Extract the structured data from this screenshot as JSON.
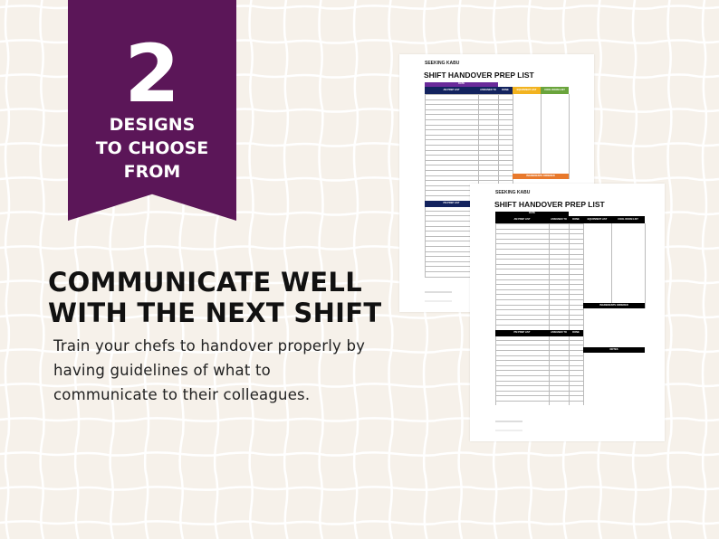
{
  "banner": {
    "number": "2",
    "lines": [
      "DESIGNS",
      "TO CHOOSE",
      "FROM"
    ]
  },
  "headline": [
    "COMMUNICATE WELL",
    "WITH THE NEXT SHIFT"
  ],
  "body": [
    "Train your chefs to handover properly by",
    "having guidelines of what to",
    "communicate to their colleagues."
  ],
  "docs": [
    {
      "logo": "SEEKING KABU",
      "title": "SHIFT HANDOVER PREP LIST",
      "date": "DATE",
      "am": "AM PREP LIST",
      "assigned": "ASSIGNED TO",
      "done": "DONE",
      "equipment": "EQUIPMENT LIST",
      "coolroom": "COOL ROOM LIST",
      "ingredients": "INGREDIENTS ORDERED",
      "pm": "PM PREP LIST",
      "colors": {
        "date": "#6a2a9a",
        "header": "#13235e",
        "equipment": "#f2b320",
        "coolroom": "#6aa43c",
        "ingredients": "#e8792c"
      }
    },
    {
      "logo": "SEEKING KABU",
      "title": "SHIFT HANDOVER PREP LIST",
      "date": "DATE",
      "am": "AM PREP LIST",
      "assigned": "ASSIGNED TO",
      "done": "DONE",
      "equipment": "EQUIPMENT LIST",
      "coolroom": "COOL ROOM LIST",
      "ingredients": "INGREDIENTS ORDERED",
      "pm": "PM PREP LIST",
      "notes": "NOTES",
      "colors": {
        "date": "#000000",
        "header": "#000000",
        "equipment": "#000000",
        "coolroom": "#000000",
        "ingredients": "#000000"
      }
    }
  ],
  "colors": {
    "background": "#f6f1ea",
    "banner": "#5b1658"
  }
}
